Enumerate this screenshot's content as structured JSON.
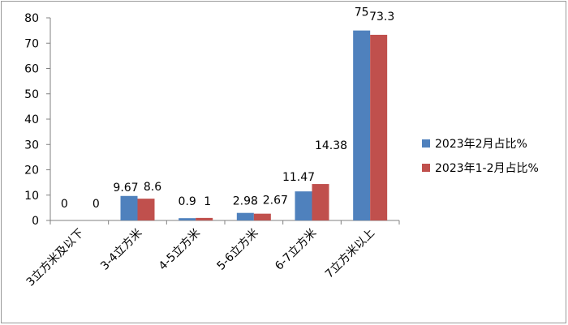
{
  "chart_data": {
    "type": "bar",
    "categories": [
      "3立方米及以下",
      "3-4立方米",
      "4-5立方米",
      "5-6立方米",
      "6-7立方米",
      "7立方米以上"
    ],
    "series": [
      {
        "name": "2023年2月占比%",
        "values": [
          0,
          9.67,
          0.9,
          2.98,
          11.47,
          75
        ],
        "labels": [
          "0",
          "9.67",
          "0.9",
          "2.98",
          "11.47",
          "75"
        ],
        "color": "#4F81BD"
      },
      {
        "name": "2023年1-2月占比%",
        "values": [
          0,
          8.6,
          1,
          2.67,
          14.38,
          73.3
        ],
        "labels": [
          "0",
          "8.6",
          "1",
          "2.67",
          "14.38",
          "73.3"
        ],
        "color": "#C0504D"
      }
    ],
    "ylim": [
      0,
      80
    ],
    "yticks": [
      0,
      10,
      20,
      30,
      40,
      50,
      60,
      70,
      80
    ],
    "grid": false,
    "legend": "right"
  }
}
